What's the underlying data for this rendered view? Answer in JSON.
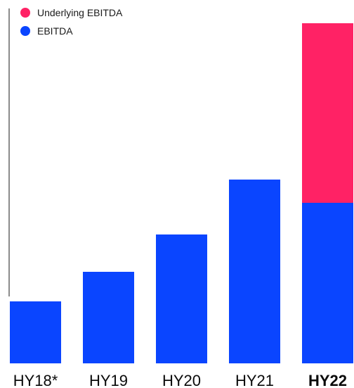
{
  "chart_data": {
    "type": "bar",
    "stacked": true,
    "categories": [
      "HY18*",
      "HY19",
      "HY20",
      "HY21",
      "HY22"
    ],
    "highlight_category": "HY22",
    "series": [
      {
        "name": "EBITDA",
        "color": "#0a45ff",
        "values": [
          88,
          130,
          183,
          261,
          228
        ]
      },
      {
        "name": "Underlying EBITDA",
        "color": "#ff2265",
        "values": [
          0,
          0,
          0,
          0,
          255
        ]
      }
    ],
    "legend_order": [
      "Underlying EBITDA",
      "EBITDA"
    ],
    "ylim": [
      0,
      490
    ],
    "grid": false,
    "legend_position": "top-left",
    "title": "",
    "xlabel": "",
    "ylabel": ""
  }
}
